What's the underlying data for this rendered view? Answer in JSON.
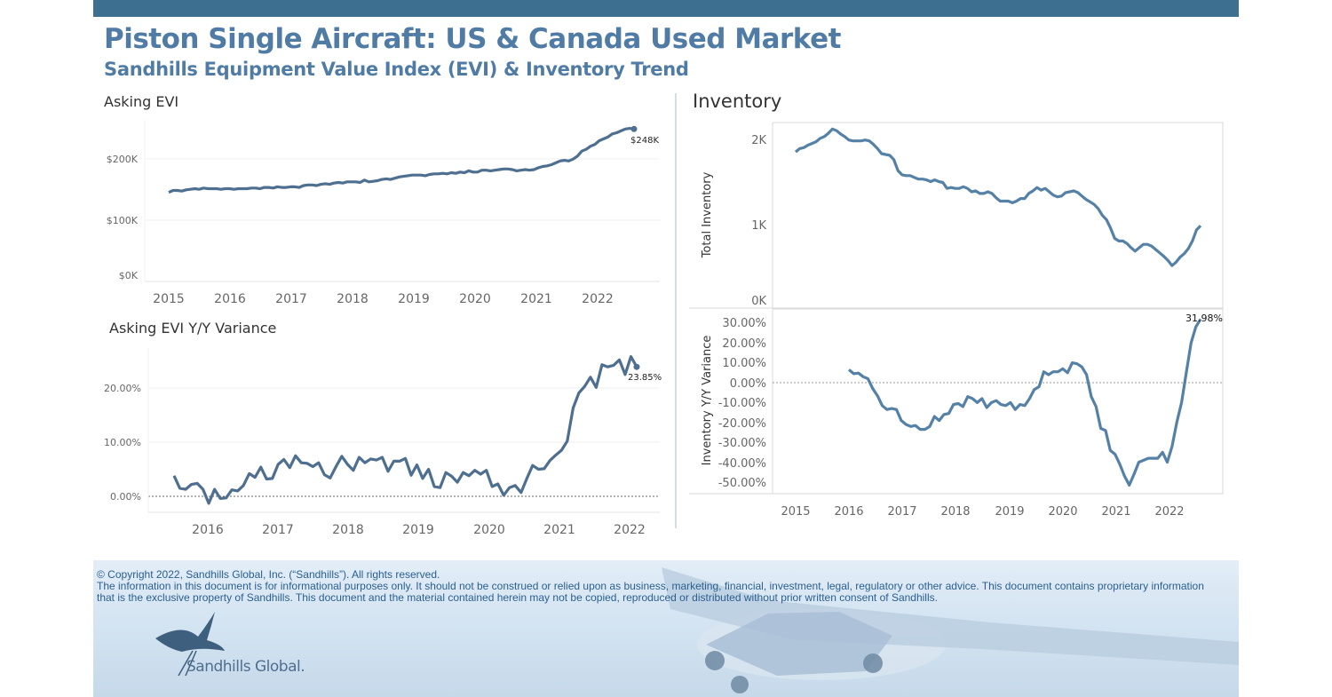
{
  "header": {
    "title": "Piston Single Aircraft:  US & Canada Used Market",
    "subtitle": "Sandhills Equipment Value Index (EVI) & Inventory Trend"
  },
  "colors": {
    "accent": "#3d6f91",
    "line": "#5581a7",
    "evi_line": "#4e6f8f",
    "title": "#4f7ba5"
  },
  "footer": {
    "copyright": "© Copyright 2022, Sandhills Global, Inc. (“Sandhills”). All rights reserved.",
    "disclaimer": "The information in this document is for informational purposes only.  It should not be construed or relied upon as business, marketing, financial, investment, legal, regulatory or other advice. This document contains proprietary information that is the exclusive property of Sandhills. This document and the material contained herein may not be copied, reproduced or distributed without prior written consent of Sandhills.",
    "logo_text": "Sandhills Global."
  },
  "chart_data": [
    {
      "id": "asking-evi",
      "type": "line",
      "title": "Asking EVI",
      "x_tick_labels": [
        "2015",
        "2016",
        "2017",
        "2018",
        "2019",
        "2020",
        "2021",
        "2022"
      ],
      "y_tick_labels": [
        "$0K",
        "$100K",
        "$200K"
      ],
      "ylim": [
        0,
        260000
      ],
      "end_label": "$248K",
      "series": [
        {
          "values": [
            145,
            148,
            148,
            147,
            149,
            150,
            151,
            150,
            152,
            151,
            151,
            151,
            150,
            151,
            151,
            150,
            151,
            151,
            151,
            152,
            152,
            151,
            153,
            153,
            152,
            154,
            153,
            153,
            154,
            154,
            153,
            156,
            157,
            157,
            156,
            158,
            159,
            158,
            160,
            161,
            160,
            162,
            162,
            162,
            161,
            165,
            162,
            163,
            164,
            166,
            167,
            166,
            168,
            170,
            171,
            172,
            173,
            173,
            173,
            172,
            174,
            175,
            175,
            176,
            175,
            177,
            176,
            178,
            177,
            180,
            178,
            178,
            181,
            181,
            180,
            181,
            182,
            183,
            183,
            182,
            180,
            181,
            182,
            181,
            182,
            185,
            187,
            188,
            190,
            193,
            196,
            197,
            196,
            199,
            204,
            212,
            215,
            220,
            223,
            229,
            232,
            235,
            240,
            242,
            245,
            248,
            249,
            248
          ]
        }
      ]
    },
    {
      "id": "asking-evi-yoy",
      "type": "line",
      "title": "Asking EVI Y/Y Variance",
      "x_tick_labels": [
        "2016",
        "2017",
        "2018",
        "2019",
        "2020",
        "2021",
        "2022"
      ],
      "y_tick_labels": [
        "0.00%",
        "10.00%",
        "20.00%"
      ],
      "ylim": [
        -3,
        28
      ],
      "end_label": "23.85%",
      "series": [
        {
          "values": [
            3.8,
            1.5,
            1.3,
            2.2,
            2.4,
            1.3,
            -1.3,
            1.3,
            -0.4,
            -0.3,
            1.2,
            1.0,
            2.0,
            4.2,
            3.5,
            5.4,
            3.2,
            3.3,
            5.9,
            6.8,
            5.3,
            7.5,
            6.2,
            6.1,
            5.5,
            6.2,
            4.0,
            3.4,
            5.5,
            7.4,
            5.9,
            4.8,
            7.2,
            6.2,
            6.9,
            6.7,
            7.2,
            4.6,
            6.5,
            6.5,
            7.0,
            3.9,
            5.8,
            3.3,
            5.0,
            1.8,
            1.6,
            4.4,
            3.7,
            2.6,
            4.4,
            3.8,
            4.8,
            4.1,
            4.8,
            1.8,
            2.3,
            0.2,
            1.6,
            2.0,
            0.7,
            3.3,
            5.7,
            5.0,
            5.1,
            6.6,
            7.6,
            8.5,
            10.2,
            16.3,
            19.1,
            20.3,
            22.0,
            20.1,
            24.3,
            23.9,
            24.2,
            25.2,
            22.5,
            25.8,
            23.9
          ]
        }
      ]
    },
    {
      "id": "inventory",
      "type": "line",
      "title": "Inventory",
      "ylabel": "Total Inventory",
      "y_tick_labels": [
        "0K",
        "1K",
        "2K"
      ],
      "ylim": [
        0,
        2.1
      ],
      "series": [
        {
          "values": [
            1.8,
            1.84,
            1.85,
            1.88,
            1.9,
            1.92,
            1.96,
            1.98,
            2.02,
            2.07,
            2.05,
            2.01,
            1.98,
            1.94,
            1.93,
            1.93,
            1.93,
            1.94,
            1.93,
            1.89,
            1.84,
            1.78,
            1.77,
            1.76,
            1.71,
            1.58,
            1.53,
            1.52,
            1.52,
            1.5,
            1.48,
            1.48,
            1.47,
            1.45,
            1.47,
            1.45,
            1.44,
            1.37,
            1.38,
            1.37,
            1.37,
            1.39,
            1.37,
            1.33,
            1.34,
            1.31,
            1.31,
            1.33,
            1.31,
            1.26,
            1.22,
            1.22,
            1.22,
            1.2,
            1.22,
            1.25,
            1.25,
            1.31,
            1.34,
            1.38,
            1.35,
            1.37,
            1.33,
            1.29,
            1.27,
            1.28,
            1.32,
            1.33,
            1.34,
            1.32,
            1.28,
            1.24,
            1.21,
            1.18,
            1.13,
            1.05,
            1.0,
            0.9,
            0.78,
            0.75,
            0.75,
            0.72,
            0.67,
            0.63,
            0.67,
            0.71,
            0.71,
            0.69,
            0.65,
            0.61,
            0.57,
            0.52,
            0.46,
            0.5,
            0.56,
            0.6,
            0.66,
            0.75,
            0.88,
            0.93
          ]
        }
      ]
    },
    {
      "id": "inventory-yoy",
      "type": "line",
      "ylabel": "Inventory  Y/Y Variance",
      "x_tick_labels": [
        "2015",
        "2016",
        "2017",
        "2018",
        "2019",
        "2020",
        "2021",
        "2022"
      ],
      "y_tick_labels": [
        "30.00%",
        "20.00%",
        "10.00%",
        "0.00%",
        "-10.00%",
        "-20.00%",
        "-30.00%",
        "-40.00%",
        "-50.00%"
      ],
      "ylim": [
        -56,
        34
      ],
      "end_label": "31.98%",
      "series": [
        {
          "values": [
            6.5,
            4.5,
            4.8,
            3.0,
            2.0,
            -3.0,
            -6.5,
            -11.5,
            -13.5,
            -13.0,
            -13.5,
            -19.0,
            -21.0,
            -22.0,
            -21.5,
            -23.5,
            -23.5,
            -22.0,
            -17.0,
            -19.0,
            -16.0,
            -15.5,
            -11.0,
            -10.5,
            -12.0,
            -7.0,
            -8.0,
            -10.0,
            -8.0,
            -12.5,
            -10.0,
            -9.0,
            -11.0,
            -11.5,
            -10.0,
            -13.5,
            -11.0,
            -11.5,
            -8.0,
            -3.5,
            -2.0,
            5.5,
            4.0,
            5.5,
            5.5,
            7.0,
            5.0,
            10.0,
            9.5,
            8.0,
            4.0,
            -7.0,
            -12.0,
            -23.0,
            -24.0,
            -34.0,
            -36.0,
            -41.0,
            -47.0,
            -51.5,
            -46.0,
            -40.0,
            -39.0,
            -38.0,
            -38.0,
            -38.0,
            -35.0,
            -40.0,
            -32.0,
            -20.0,
            -10.0,
            5.0,
            20.0,
            28.0,
            31.98
          ]
        }
      ]
    }
  ]
}
